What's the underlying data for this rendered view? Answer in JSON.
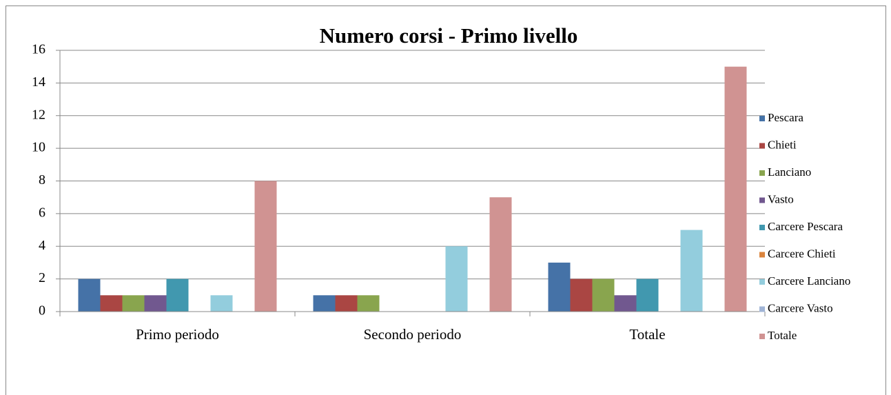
{
  "chart_data": {
    "type": "bar",
    "title": "Numero corsi - Primo livello",
    "categories": [
      "Primo periodo",
      "Secondo periodo",
      "Totale"
    ],
    "series": [
      {
        "name": "Pescara",
        "color": "#4572a7",
        "values": [
          2,
          1,
          3
        ]
      },
      {
        "name": "Chieti",
        "color": "#aa4643",
        "values": [
          1,
          1,
          2
        ]
      },
      {
        "name": "Lanciano",
        "color": "#89a54e",
        "values": [
          1,
          1,
          2
        ]
      },
      {
        "name": "Vasto",
        "color": "#71588f",
        "values": [
          1,
          0,
          1
        ]
      },
      {
        "name": "Carcere Pescara",
        "color": "#4198af",
        "values": [
          2,
          0,
          2
        ]
      },
      {
        "name": "Carcere Chieti",
        "color": "#db843d",
        "values": [
          0,
          0,
          0
        ]
      },
      {
        "name": "Carcere Lanciano",
        "color": "#93cddd",
        "values": [
          1,
          4,
          5
        ]
      },
      {
        "name": "Carcere Vasto",
        "color": "#a0b4d6",
        "values": [
          0,
          0,
          0
        ]
      },
      {
        "name": "Totale",
        "color": "#d09392",
        "values": [
          8,
          7,
          15
        ]
      }
    ],
    "ylim": [
      0,
      16
    ],
    "yticks": [
      0,
      2,
      4,
      6,
      8,
      10,
      12,
      14,
      16
    ],
    "grid": true,
    "legend": "right"
  }
}
